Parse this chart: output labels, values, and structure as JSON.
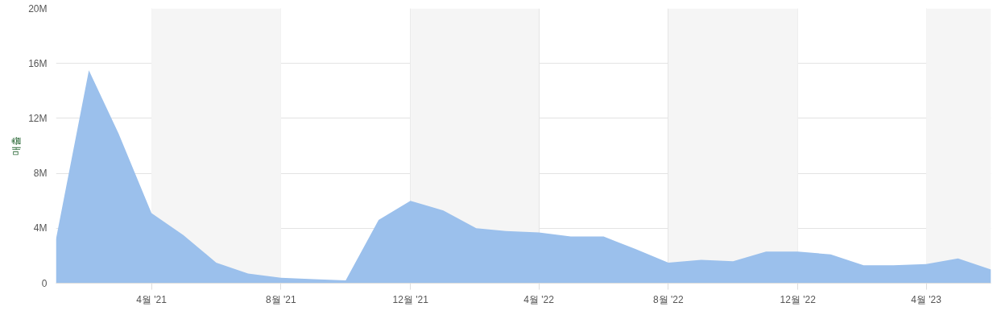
{
  "chart_data": {
    "type": "area",
    "ylabel": "매출",
    "x": [
      "2021-01",
      "2021-02",
      "2021-03",
      "2021-04",
      "2021-05",
      "2021-06",
      "2021-07",
      "2021-08",
      "2021-09",
      "2021-10",
      "2021-11",
      "2021-12",
      "2022-01",
      "2022-02",
      "2022-03",
      "2022-04",
      "2022-05",
      "2022-06",
      "2022-07",
      "2022-08",
      "2022-09",
      "2022-10",
      "2022-11",
      "2022-12",
      "2023-01",
      "2023-02",
      "2023-03",
      "2023-04",
      "2023-05",
      "2023-06"
    ],
    "series": [
      {
        "color": "#9bc0ec",
        "values": [
          3.2,
          15.5,
          10.9,
          5.1,
          3.5,
          1.5,
          0.7,
          0.4,
          0.3,
          0.2,
          4.6,
          6.0,
          5.3,
          4.0,
          3.8,
          3.7,
          3.4,
          3.4,
          2.5,
          1.5,
          1.7,
          1.6,
          2.3,
          2.3,
          2.1,
          1.3,
          1.3,
          1.4,
          1.8,
          1.0
        ]
      }
    ],
    "xlim": [
      "2021-01",
      "2023-06"
    ],
    "xticks": [
      {
        "value": "2021-04",
        "label": "4월 '21"
      },
      {
        "value": "2021-08",
        "label": "8월 '21"
      },
      {
        "value": "2021-12",
        "label": "12월 '21"
      },
      {
        "value": "2022-04",
        "label": "4월 '22"
      },
      {
        "value": "2022-08",
        "label": "8월 '22"
      },
      {
        "value": "2022-12",
        "label": "12월 '22"
      },
      {
        "value": "2023-04",
        "label": "4월 '23"
      }
    ],
    "ylim": [
      0,
      20
    ],
    "yticks": [
      0,
      {
        "value": 4,
        "label": "4M"
      },
      {
        "value": 8,
        "label": "8M"
      },
      {
        "value": 12,
        "label": "12M"
      },
      {
        "value": 16,
        "label": "16M"
      },
      {
        "value": 20,
        "label": "20M"
      }
    ],
    "bands": [
      {
        "axis": "x",
        "from": "2021-04",
        "to": "2021-08",
        "color": "#f5f5f5"
      },
      {
        "axis": "x",
        "from": "2021-12",
        "to": "2022-04",
        "color": "#f5f5f5"
      },
      {
        "axis": "x",
        "from": "2022-08",
        "to": "2022-12",
        "color": "#f5f5f5"
      },
      {
        "axis": "x",
        "from": "2023-04",
        "to": "2023-06",
        "color": "#f5f5f5"
      }
    ],
    "grid": true
  }
}
